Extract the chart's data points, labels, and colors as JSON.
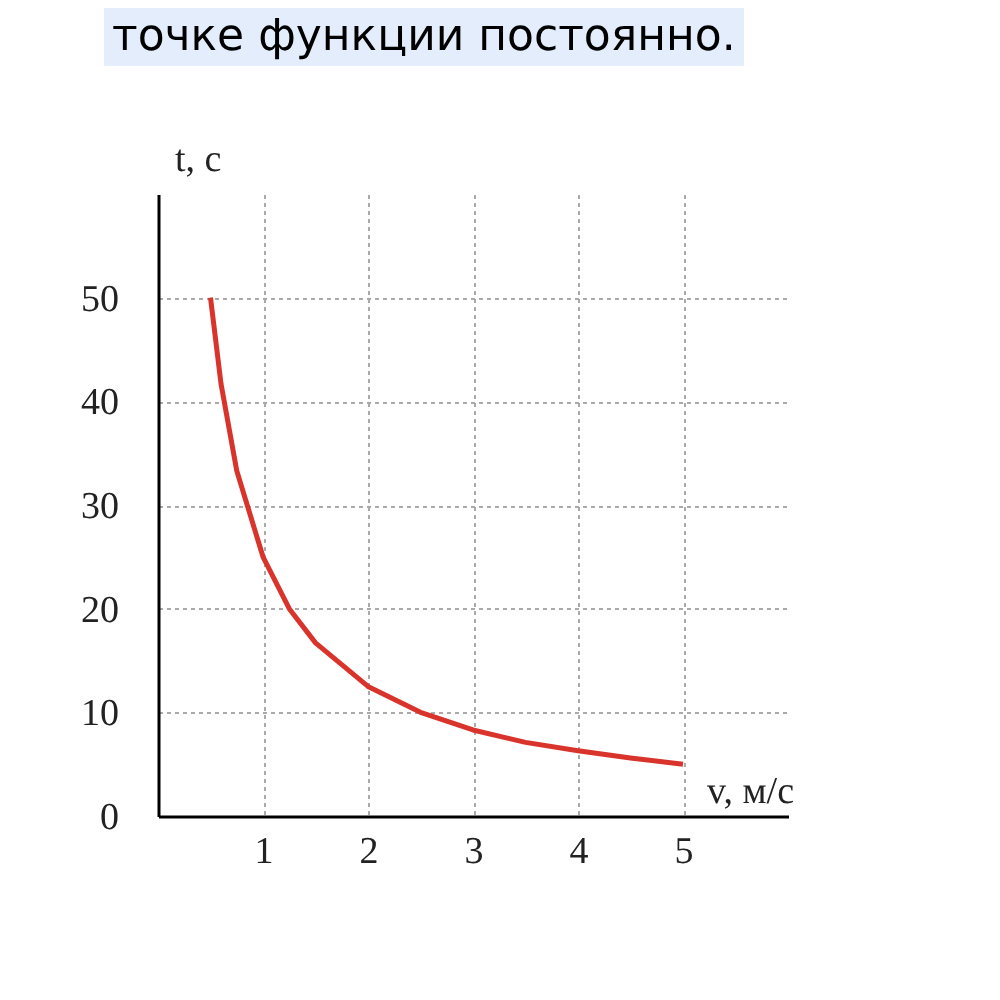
{
  "chart_data": {
    "type": "line",
    "annotations": [
      "точке функции постоянно."
    ],
    "xlabel": "v, м/с",
    "ylabel": "t, с",
    "x": [
      0.5,
      0.6,
      0.75,
      1,
      1.25,
      1.5,
      2,
      2.5,
      3,
      3.5,
      4,
      4.5,
      5
    ],
    "series": [
      {
        "color": "#d9342b",
        "values": [
          50,
          41.7,
          33.3,
          25,
          20,
          16.7,
          12.5,
          10,
          8.3,
          7.1,
          6.3,
          5.6,
          5
        ]
      }
    ],
    "xlim": [
      0,
      6
    ],
    "ylim": [
      0,
      60
    ],
    "xticks": [
      1,
      2,
      3,
      4,
      5
    ],
    "yticks": [
      0,
      10,
      20,
      30,
      40,
      50
    ],
    "grid": true,
    "marker": "none",
    "line_style": "solid"
  }
}
